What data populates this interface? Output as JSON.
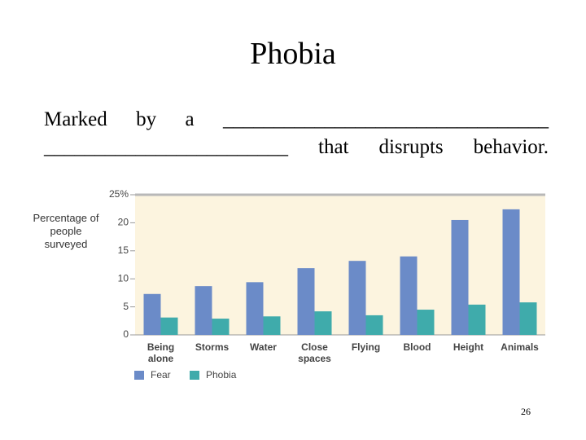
{
  "slide_title": "Phobia",
  "body_text": "Marked by a ________________________________ ________________________ that disrupts behavior.",
  "page_number": "26",
  "chart_data": {
    "type": "bar",
    "y_label": "Percentage of people surveyed",
    "categories": [
      "Being alone",
      "Storms",
      "Water",
      "Close spaces",
      "Flying",
      "Blood",
      "Height",
      "Animals"
    ],
    "series": [
      {
        "name": "Fear",
        "color": "#6b8bc8",
        "values": [
          7.3,
          8.7,
          9.4,
          11.9,
          13.2,
          14.0,
          20.5,
          22.4
        ]
      },
      {
        "name": "Phobia",
        "color": "#3fabab",
        "values": [
          3.1,
          2.9,
          3.3,
          4.2,
          3.5,
          4.5,
          5.4,
          5.8
        ]
      }
    ],
    "ylim": [
      0,
      25
    ],
    "yticks": [
      0,
      5,
      10,
      15,
      20,
      {
        "value": 25,
        "label": "25%"
      }
    ]
  }
}
